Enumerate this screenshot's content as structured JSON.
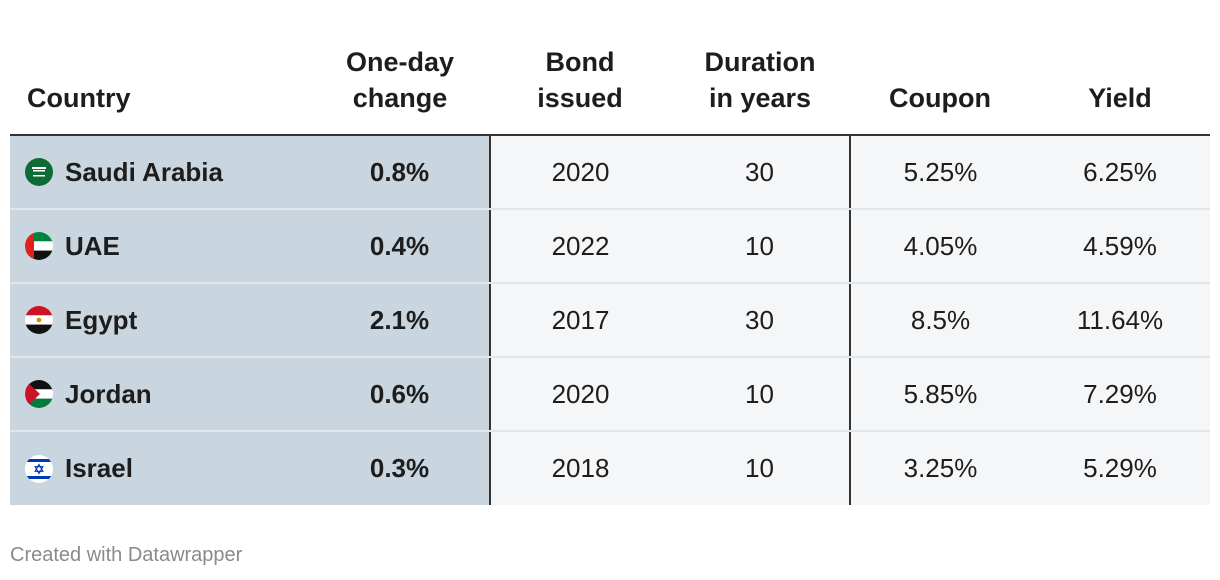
{
  "chart_data": {
    "type": "table",
    "columns": [
      {
        "key": "country",
        "line1": "",
        "line2": "Country"
      },
      {
        "key": "change",
        "line1": "One-day",
        "line2": "change"
      },
      {
        "key": "bond",
        "line1": "Bond",
        "line2": "issued"
      },
      {
        "key": "duration",
        "line1": "Duration",
        "line2": "in years"
      },
      {
        "key": "coupon",
        "line1": "",
        "line2": "Coupon"
      },
      {
        "key": "yield",
        "line1": "",
        "line2": "Yield"
      }
    ],
    "rows": [
      {
        "flag": "saudi-arabia-flag-icon",
        "country": "Saudi Arabia",
        "change": "0.8%",
        "bond": "2020",
        "duration": "30",
        "coupon": "5.25%",
        "yield": "6.25%"
      },
      {
        "flag": "uae-flag-icon",
        "country": "UAE",
        "change": "0.4%",
        "bond": "2022",
        "duration": "10",
        "coupon": "4.05%",
        "yield": "4.59%"
      },
      {
        "flag": "egypt-flag-icon",
        "country": "Egypt",
        "change": "2.1%",
        "bond": "2017",
        "duration": "30",
        "coupon": "8.5%",
        "yield": "11.64%"
      },
      {
        "flag": "jordan-flag-icon",
        "country": "Jordan",
        "change": "0.6%",
        "bond": "2020",
        "duration": "10",
        "coupon": "5.85%",
        "yield": "7.29%"
      },
      {
        "flag": "israel-flag-icon",
        "country": "Israel",
        "change": "0.3%",
        "bond": "2018",
        "duration": "10",
        "coupon": "3.25%",
        "yield": "5.29%"
      }
    ]
  },
  "colors": {
    "highlight_columns": "#c9d6df",
    "other_columns": "#f4f6f8",
    "row_divider": "#e2e6ea",
    "rule": "#333333"
  },
  "footer": {
    "credit": "Created with Datawrapper"
  }
}
